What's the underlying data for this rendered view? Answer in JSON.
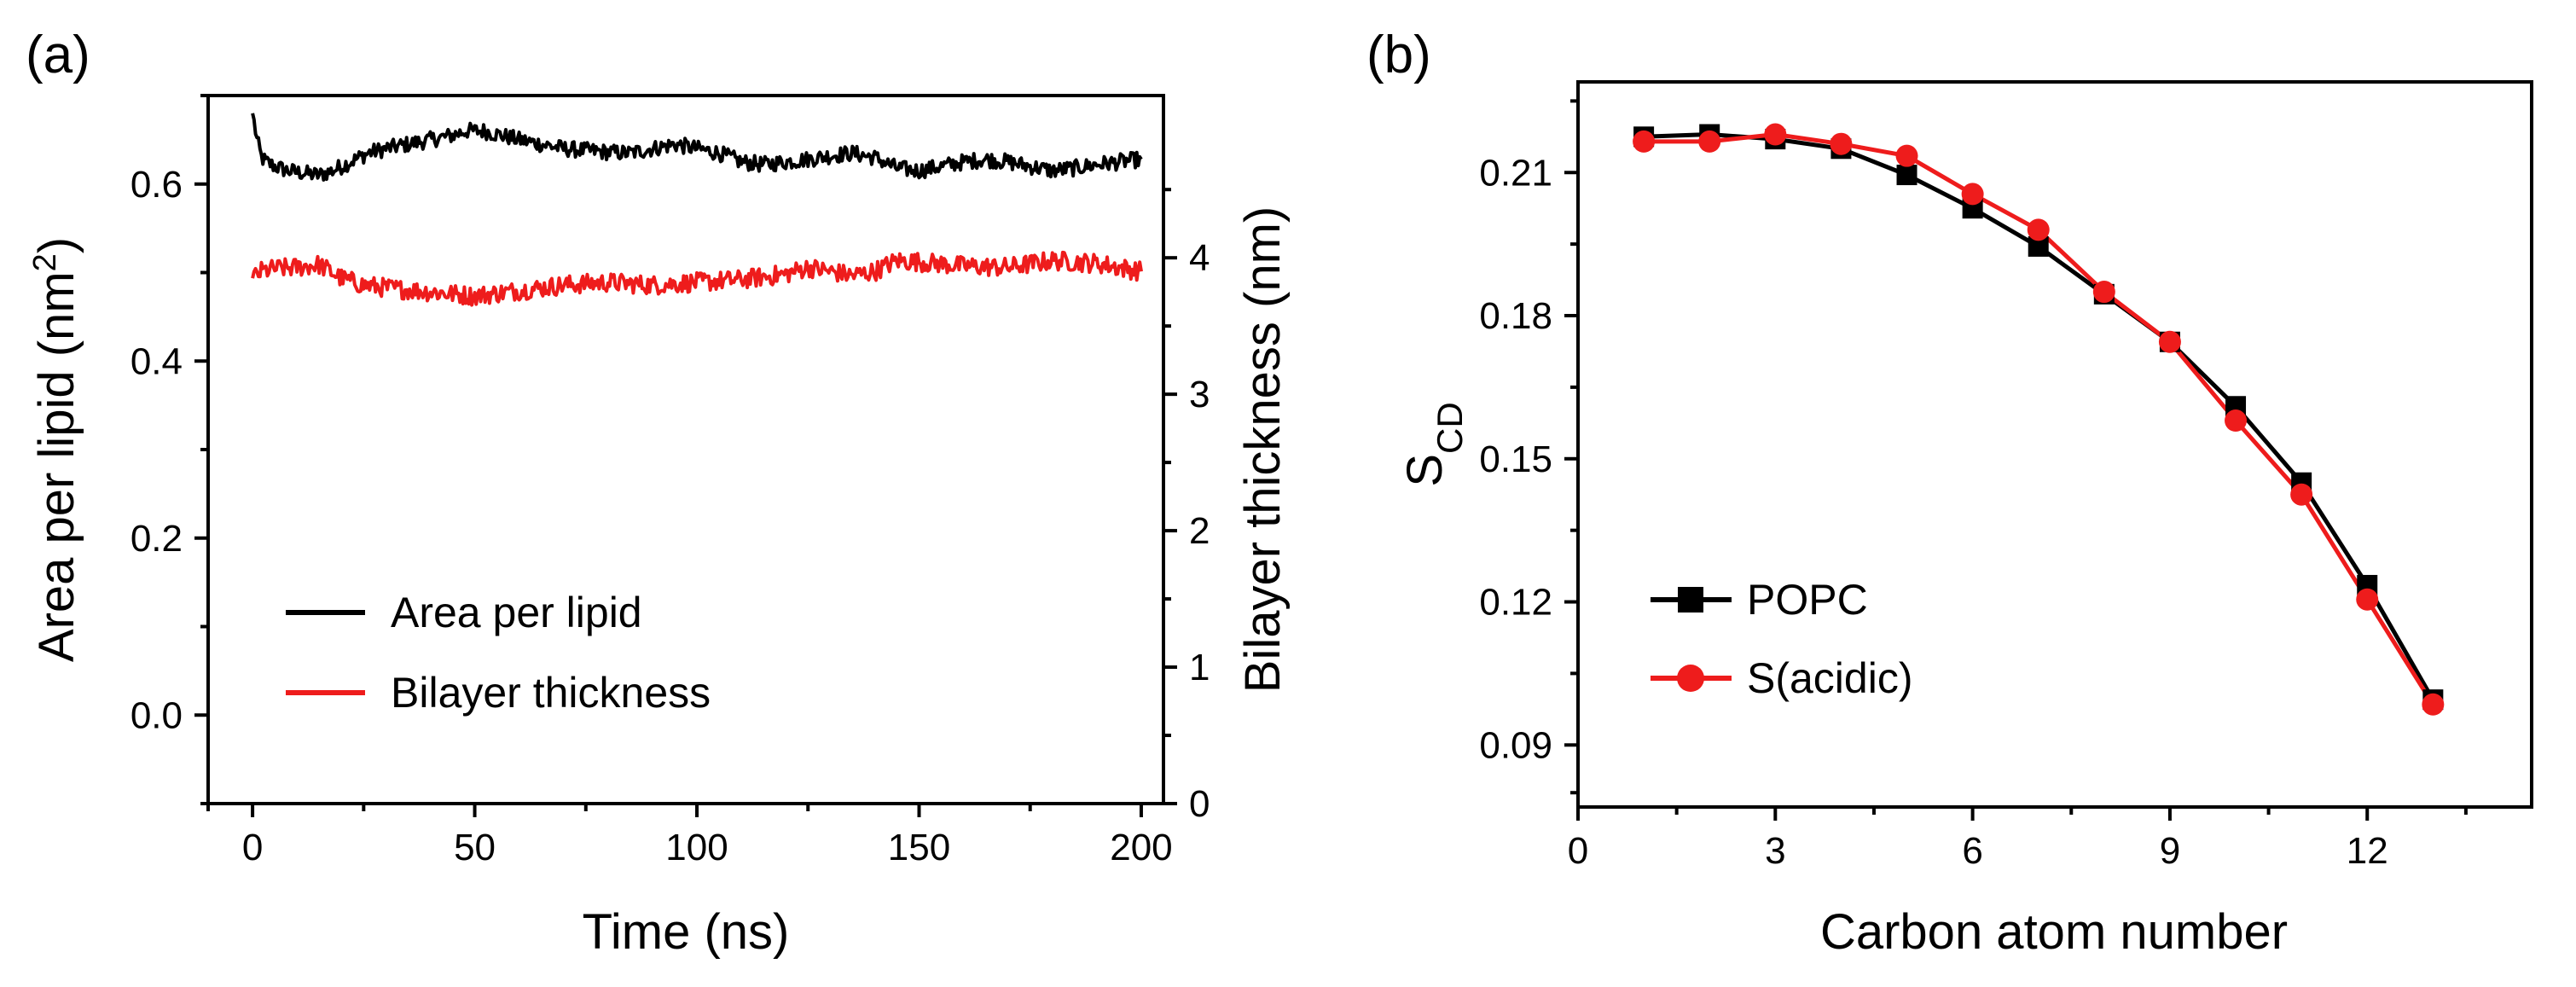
{
  "panel_a": {
    "label": "(a)",
    "legend": [
      "Area per lipid",
      "Bilayer thickness"
    ],
    "chart_data": {
      "type": "line",
      "xlabel": "Time (ns)",
      "ylabel_left": "Area per lipid (nm",
      "ylabel_left_sup": "2",
      "ylabel_left_end": ")",
      "ylabel_right": "Bilayer thickness (nm)",
      "xlim": [
        -10,
        205
      ],
      "ylim_left": [
        -0.1,
        0.7
      ],
      "ylim_right": [
        0,
        5.189
      ],
      "x_ticks": [
        "0",
        "50",
        "100",
        "150",
        "200"
      ],
      "y_left_ticks": [
        "0.0",
        "0.2",
        "0.4",
        "0.6"
      ],
      "y_right_ticks": [
        "0",
        "1",
        "2",
        "3",
        "4"
      ],
      "series": [
        {
          "name": "Area per lipid",
          "axis": "left",
          "color": "#000000",
          "x": [
            0,
            1,
            2,
            3,
            5,
            8,
            12,
            15,
            18,
            22,
            26,
            30,
            35,
            40,
            45,
            48,
            52,
            56,
            60,
            65,
            70,
            75,
            80,
            85,
            90,
            95,
            100,
            105,
            110,
            115,
            120,
            125,
            130,
            135,
            140,
            145,
            150,
            155,
            160,
            165,
            170,
            175,
            180,
            185,
            190,
            195,
            200
          ],
          "values": [
            0.68,
            0.65,
            0.63,
            0.625,
            0.62,
            0.615,
            0.612,
            0.61,
            0.615,
            0.625,
            0.635,
            0.64,
            0.645,
            0.65,
            0.655,
            0.66,
            0.66,
            0.655,
            0.65,
            0.645,
            0.64,
            0.638,
            0.636,
            0.635,
            0.64,
            0.645,
            0.64,
            0.635,
            0.625,
            0.622,
            0.625,
            0.628,
            0.632,
            0.635,
            0.63,
            0.618,
            0.615,
            0.62,
            0.625,
            0.628,
            0.625,
            0.62,
            0.615,
            0.618,
            0.622,
            0.625,
            0.628
          ]
        },
        {
          "name": "Bilayer thickness",
          "axis": "right",
          "color": "#ee1c1c",
          "x": [
            0,
            2,
            5,
            10,
            15,
            20,
            25,
            30,
            40,
            50,
            60,
            70,
            80,
            90,
            100,
            110,
            120,
            125,
            130,
            135,
            140,
            145,
            150,
            160,
            170,
            180,
            190,
            200
          ],
          "values": [
            3.85,
            3.9,
            3.92,
            3.93,
            3.95,
            3.85,
            3.8,
            3.78,
            3.75,
            3.72,
            3.76,
            3.8,
            3.82,
            3.8,
            3.82,
            3.84,
            3.88,
            3.93,
            3.9,
            3.87,
            3.9,
            3.98,
            3.97,
            3.94,
            3.93,
            3.98,
            3.96,
            3.9
          ]
        }
      ]
    }
  },
  "panel_b": {
    "label": "(b)",
    "legend": [
      "POPC",
      "S(acidic)"
    ],
    "chart_data": {
      "type": "line",
      "xlabel": "Carbon atom number",
      "ylabel_main": "S",
      "ylabel_sub": "CD",
      "xlim": [
        0,
        14.5
      ],
      "ylim": [
        0.077,
        0.229
      ],
      "x_ticks": [
        "0",
        "3",
        "6",
        "9",
        "12"
      ],
      "y_ticks": [
        "0.09",
        "0.12",
        "0.15",
        "0.18",
        "0.21"
      ],
      "series": [
        {
          "name": "POPC",
          "color": "#000000",
          "marker": "square",
          "x": [
            1,
            2,
            3,
            4,
            5,
            6,
            7,
            8,
            9,
            10,
            11,
            12,
            13
          ],
          "values": [
            0.2175,
            0.218,
            0.217,
            0.215,
            0.2095,
            0.2025,
            0.1945,
            0.1845,
            0.1745,
            0.161,
            0.145,
            0.1235,
            0.0995
          ]
        },
        {
          "name": "S(acidic)",
          "color": "#ee1c1c",
          "marker": "circle",
          "x": [
            1,
            2,
            3,
            4,
            5,
            6,
            7,
            8,
            9,
            10,
            11,
            12,
            13
          ],
          "values": [
            0.2165,
            0.2165,
            0.218,
            0.216,
            0.2135,
            0.2055,
            0.198,
            0.185,
            0.1745,
            0.158,
            0.1425,
            0.1205,
            0.0985
          ]
        }
      ]
    }
  }
}
